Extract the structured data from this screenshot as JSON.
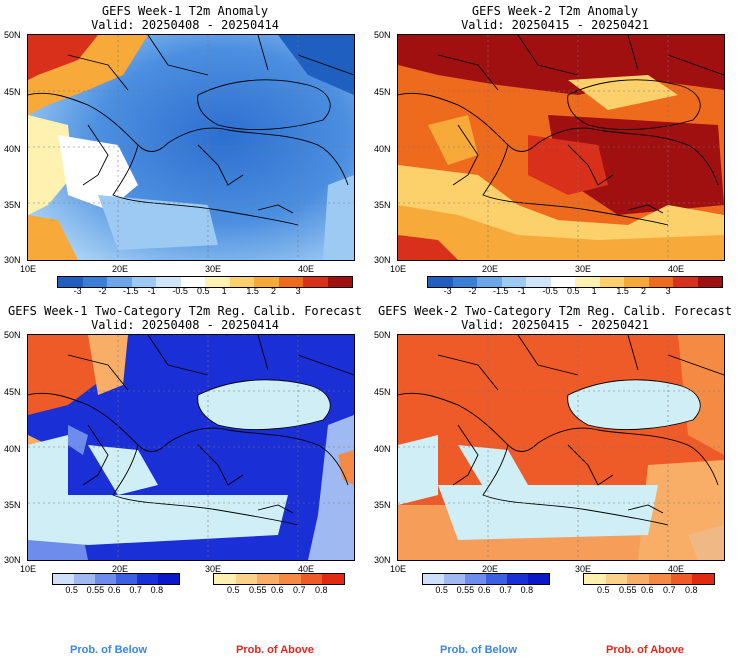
{
  "panels": [
    {
      "title_line1": "GEFS Week-1 T2m Anomaly",
      "title_line2": "Valid: 20250408 - 20250414",
      "scheme": "anomaly-cold",
      "ylabels": [
        "50N",
        "45N",
        "40N",
        "35N",
        "30N"
      ],
      "xlabels": [
        "10E",
        "20E",
        "30E",
        "40E"
      ],
      "colorbar": {
        "labels": [
          "-3",
          "-2",
          "-1.5",
          "-1",
          "-0.5",
          "0.5",
          "1",
          "1.5",
          "2",
          "3"
        ],
        "colors": [
          "#1f5fbf",
          "#3a7fd6",
          "#6aa7e8",
          "#9ccaf3",
          "#cfe6fa",
          "#ffffff",
          "#fff2b0",
          "#fcd16b",
          "#f7a93a",
          "#ee6a1c",
          "#d8301a",
          "#a01010"
        ]
      }
    },
    {
      "title_line1": "GEFS Week-2 T2m Anomaly",
      "title_line2": "Valid: 20250415 - 20250421",
      "scheme": "anomaly-warm",
      "ylabels": [
        "50N",
        "45N",
        "40N",
        "35N",
        "30N"
      ],
      "xlabels": [
        "10E",
        "20E",
        "30E",
        "40E"
      ],
      "colorbar": {
        "labels": [
          "-3",
          "-2",
          "-1.5",
          "-1",
          "-0.5",
          "0.5",
          "1",
          "1.5",
          "2",
          "3"
        ],
        "colors": [
          "#1f5fbf",
          "#3a7fd6",
          "#6aa7e8",
          "#9ccaf3",
          "#cfe6fa",
          "#ffffff",
          "#fff2b0",
          "#fcd16b",
          "#f7a93a",
          "#ee6a1c",
          "#d8301a",
          "#a01010"
        ]
      }
    },
    {
      "title_line1": "GEFS Week-1 Two-Category T2m Reg. Calib. Forecast",
      "title_line2": "Valid: 20250408 - 20250414",
      "scheme": "prob-below",
      "ylabels": [
        "50N",
        "45N",
        "40N",
        "35N",
        "30N"
      ],
      "xlabels": [
        "10E",
        "20E",
        "30E",
        "40E"
      ],
      "below_labels": [
        "0.5",
        "0.55",
        "0.6",
        "0.7",
        "0.8"
      ],
      "above_labels": [
        "0.5",
        "0.55",
        "0.6",
        "0.7",
        "0.8"
      ],
      "below_colors": [
        "#cfe0fa",
        "#9fb9f2",
        "#6d8ceb",
        "#3e5fe2",
        "#1a2fd6",
        "#0a18c8"
      ],
      "above_colors": [
        "#fff2b0",
        "#fcd28a",
        "#f8ae66",
        "#f48a44",
        "#ee5a28",
        "#e02a12"
      ],
      "foot_below": "Prob. of Below",
      "foot_above": "Prob. of Above"
    },
    {
      "title_line1": "GEFS Week-2 Two-Category T2m Reg. Calib. Forecast",
      "title_line2": "Valid: 20250415 - 20250421",
      "scheme": "prob-above",
      "ylabels": [
        "50N",
        "45N",
        "40N",
        "35N",
        "30N"
      ],
      "xlabels": [
        "10E",
        "20E",
        "30E",
        "40E"
      ],
      "below_labels": [
        "0.5",
        "0.55",
        "0.6",
        "0.7",
        "0.8"
      ],
      "above_labels": [
        "0.5",
        "0.55",
        "0.6",
        "0.7",
        "0.8"
      ],
      "below_colors": [
        "#cfe0fa",
        "#9fb9f2",
        "#6d8ceb",
        "#3e5fe2",
        "#1a2fd6",
        "#0a18c8"
      ],
      "above_colors": [
        "#fff2b0",
        "#fcd28a",
        "#f8ae66",
        "#f48a44",
        "#ee5a28",
        "#e02a12"
      ],
      "foot_below": "Prob. of Below",
      "foot_above": "Prob. of Above"
    }
  ]
}
